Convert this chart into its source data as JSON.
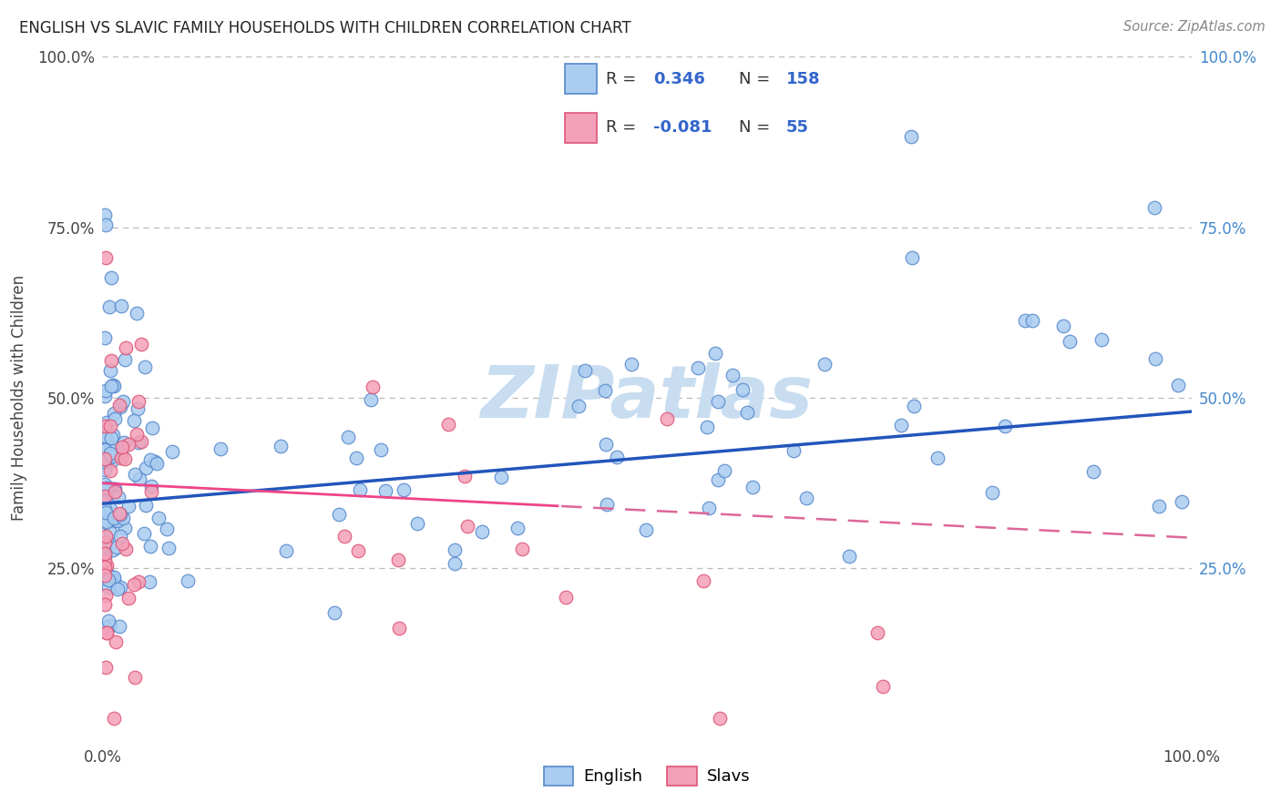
{
  "title": "ENGLISH VS SLAVIC FAMILY HOUSEHOLDS WITH CHILDREN CORRELATION CHART",
  "source": "Source: ZipAtlas.com",
  "ylabel": "Family Households with Children",
  "english_R": "0.346",
  "english_N": "158",
  "slavic_R": "-0.081",
  "slavic_N": "55",
  "english_color": "#aaccf0",
  "slavic_color": "#f4a0b8",
  "english_edge_color": "#5588cc",
  "slavic_edge_color": "#dd5577",
  "english_line_color": "#2255bb",
  "slavic_solid_line_color": "#ee4488",
  "slavic_dash_line_color": "#dd6699",
  "background_color": "#ffffff",
  "watermark": "ZIPatlas",
  "watermark_color": "#c8ddf0",
  "grid_color": "#bbbbbb",
  "title_color": "#222222",
  "source_color": "#888888",
  "right_axis_color": "#4488cc",
  "left_axis_color": "#444444",
  "legend_border_color": "#cccccc",
  "legend_text_color": "#333333",
  "legend_value_color": "#3366cc"
}
